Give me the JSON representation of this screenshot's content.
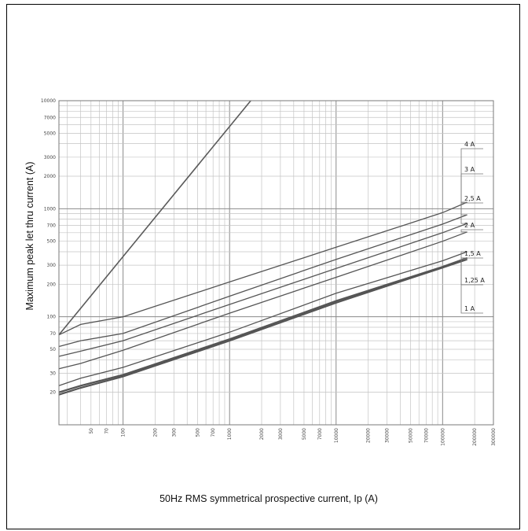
{
  "chart_data": {
    "type": "line",
    "title": "",
    "xlabel": "50Hz RMS symmetrical  prospective current, Ip (A)",
    "ylabel": "Maximum peak let thru current (A)",
    "xscale": "log",
    "yscale": "log",
    "xlim": [
      25,
      300000
    ],
    "ylim": [
      10,
      10000
    ],
    "grid": true,
    "x_ticks": [
      "50",
      "70",
      "100",
      "200",
      "300",
      "500",
      "700",
      "1000",
      "2000",
      "3000",
      "5000",
      "7000",
      "10000",
      "20000",
      "30000",
      "50000",
      "70000",
      "100000",
      "200000",
      "300000"
    ],
    "y_ticks": [
      "20",
      "30",
      "50",
      "70",
      "100",
      "200",
      "300",
      "500",
      "700",
      "1000",
      "2000",
      "3000",
      "5000",
      "7000",
      "10000"
    ],
    "cutoff_line": {
      "x": [
        25,
        1580
      ],
      "y": [
        68,
        10000
      ]
    },
    "series": [
      {
        "name": "4 A",
        "x": [
          25,
          40,
          100,
          200,
          1000,
          10000,
          100000,
          170000
        ],
        "y": [
          68,
          85,
          100,
          125,
          210,
          440,
          920,
          1150
        ]
      },
      {
        "name": "3 A",
        "x": [
          25,
          40,
          100,
          1000,
          10000,
          100000,
          170000
        ],
        "y": [
          53,
          60,
          70,
          155,
          340,
          720,
          880
        ]
      },
      {
        "name": "2,5 A",
        "x": [
          25,
          40,
          100,
          1000,
          10000,
          100000,
          170000
        ],
        "y": [
          43,
          48,
          60,
          130,
          280,
          600,
          730
        ]
      },
      {
        "name": "2 A",
        "x": [
          25,
          40,
          100,
          1000,
          10000,
          100000,
          170000
        ],
        "y": [
          33,
          37,
          49,
          108,
          232,
          500,
          610
        ]
      },
      {
        "name": "1,5 A",
        "x": [
          25,
          40,
          100,
          1000,
          10000,
          100000,
          170000
        ],
        "y": [
          23,
          27,
          34,
          72,
          165,
          330,
          400
        ]
      },
      {
        "name": "1,25 A",
        "x": [
          25,
          40,
          100,
          1000,
          10000,
          100000,
          170000
        ],
        "y": [
          20,
          23,
          29,
          62,
          140,
          290,
          350
        ]
      },
      {
        "name": "1 A",
        "x": [
          25,
          40,
          100,
          1000,
          10000,
          100000,
          170000
        ],
        "y": [
          19,
          22,
          28,
          60,
          135,
          285,
          340
        ]
      }
    ]
  }
}
